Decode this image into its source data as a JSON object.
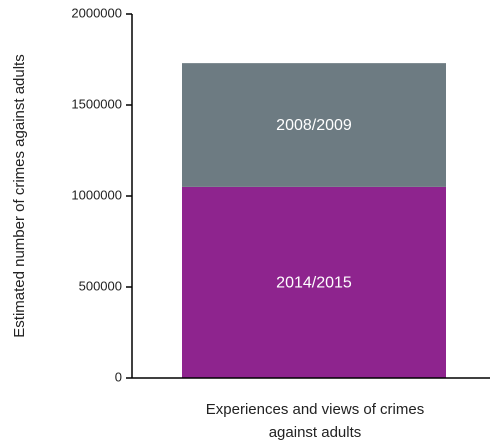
{
  "chart_data": {
    "type": "bar",
    "stacked": true,
    "categories": [
      "Experiences and views of crimes against adults"
    ],
    "xlabel_lines": [
      "Experiences and views of crimes",
      "against adults"
    ],
    "ylabel": "Estimated number of crimes against adults",
    "ylim": [
      0,
      2000000
    ],
    "yticks": [
      0,
      500000,
      1000000,
      1500000,
      2000000
    ],
    "ytick_labels": [
      "0",
      "500000",
      "1000000",
      "1500000",
      "2000000"
    ],
    "series": [
      {
        "name": "2014/2015",
        "values": [
          1050000
        ],
        "color": "#8E248E",
        "label_color": "#ffffff"
      },
      {
        "name": "2008/2009",
        "values": [
          680000
        ],
        "color": "#6D7B82",
        "label_color": "#ffffff"
      }
    ],
    "legend": "none",
    "grid": false
  }
}
